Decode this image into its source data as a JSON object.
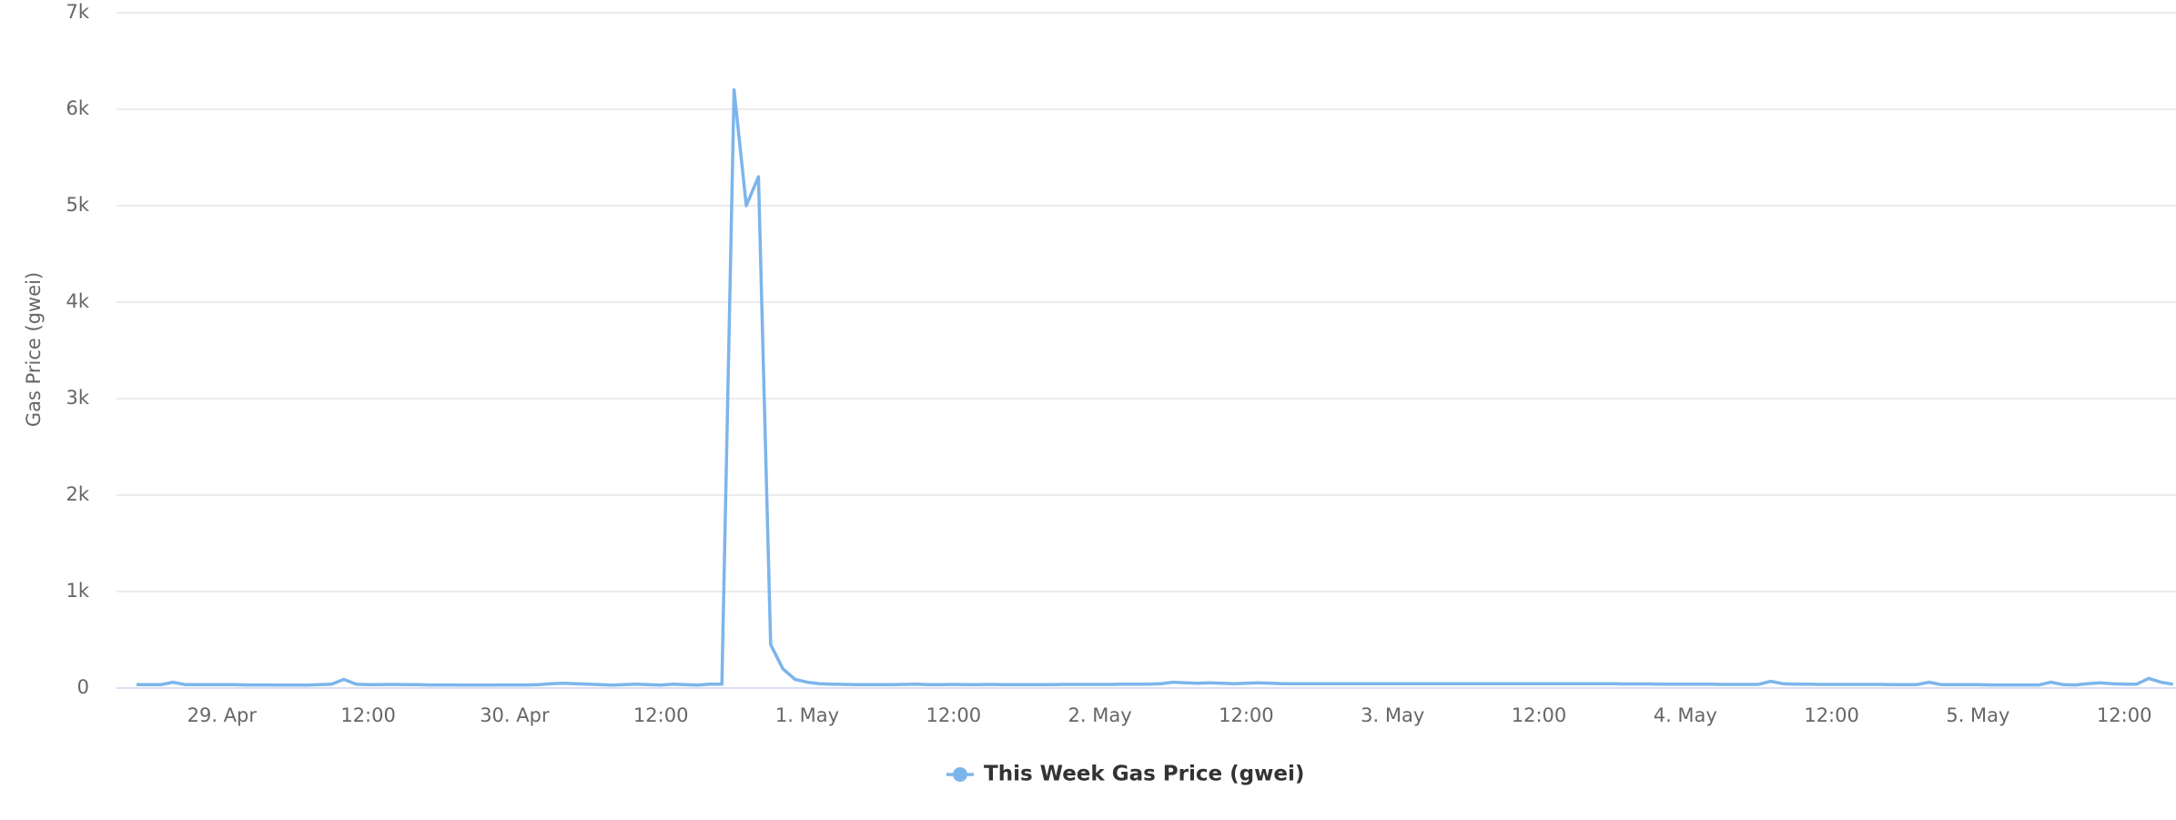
{
  "chart_data": {
    "type": "line",
    "y_label": "Gas Price (gwei)",
    "ylim": [
      0,
      7000
    ],
    "yticks": [
      0,
      {
        "value": 1000,
        "label": "1k"
      },
      {
        "value": 2000,
        "label": "2k"
      },
      {
        "value": 3000,
        "label": "3k"
      },
      {
        "value": 4000,
        "label": "4k"
      },
      {
        "value": 5000,
        "label": "5k"
      },
      {
        "value": 6000,
        "label": "6k"
      },
      {
        "value": 7000,
        "label": "7k"
      }
    ],
    "grid": true,
    "legend": "bottom",
    "categories": [
      null,
      null,
      null,
      null,
      null,
      null,
      null,
      "29. Apr",
      null,
      null,
      null,
      null,
      null,
      null,
      null,
      null,
      null,
      null,
      null,
      "12:00",
      null,
      null,
      null,
      null,
      null,
      null,
      null,
      null,
      null,
      null,
      null,
      "30. Apr",
      null,
      null,
      null,
      null,
      null,
      null,
      null,
      null,
      null,
      null,
      null,
      "12:00",
      null,
      null,
      null,
      null,
      null,
      null,
      null,
      null,
      null,
      null,
      null,
      "1. May",
      null,
      null,
      null,
      null,
      null,
      null,
      null,
      null,
      null,
      null,
      null,
      "12:00",
      null,
      null,
      null,
      null,
      null,
      null,
      null,
      null,
      null,
      null,
      null,
      "2. May",
      null,
      null,
      null,
      null,
      null,
      null,
      null,
      null,
      null,
      null,
      null,
      "12:00",
      null,
      null,
      null,
      null,
      null,
      null,
      null,
      null,
      null,
      null,
      null,
      "3. May",
      null,
      null,
      null,
      null,
      null,
      null,
      null,
      null,
      null,
      null,
      null,
      "12:00",
      null,
      null,
      null,
      null,
      null,
      null,
      null,
      null,
      null,
      null,
      null,
      "4. May",
      null,
      null,
      null,
      null,
      null,
      null,
      null,
      null,
      null,
      null,
      null,
      "12:00",
      null,
      null,
      null,
      null,
      null,
      null,
      null,
      null,
      null,
      null,
      null,
      "5. May",
      null,
      null,
      null,
      null,
      null,
      null,
      null,
      null,
      null,
      null,
      null,
      "12:00",
      null,
      null,
      null,
      null
    ],
    "series": [
      {
        "name": "This Week Gas Price (gwei)",
        "color": "#7cb5ec",
        "values": [
          35,
          35,
          35,
          60,
          35,
          35,
          35,
          35,
          35,
          32,
          32,
          32,
          30,
          30,
          30,
          35,
          40,
          90,
          40,
          35,
          35,
          38,
          35,
          35,
          32,
          32,
          32,
          30,
          30,
          30,
          32,
          32,
          32,
          35,
          45,
          50,
          45,
          40,
          35,
          30,
          35,
          40,
          35,
          30,
          40,
          35,
          30,
          40,
          40,
          6200,
          5000,
          5300,
          450,
          200,
          90,
          60,
          45,
          40,
          38,
          36,
          35,
          35,
          35,
          38,
          40,
          35,
          35,
          38,
          35,
          35,
          38,
          36,
          35,
          35,
          35,
          36,
          38,
          38,
          38,
          38,
          38,
          40,
          40,
          40,
          45,
          60,
          55,
          50,
          55,
          50,
          45,
          50,
          55,
          50,
          45,
          45,
          45,
          45,
          45,
          45,
          45,
          45,
          45,
          45,
          45,
          45,
          45,
          45,
          45,
          45,
          45,
          45,
          45,
          45,
          45,
          45,
          45,
          45,
          45,
          45,
          45,
          45,
          42,
          42,
          42,
          40,
          40,
          40,
          40,
          40,
          38,
          38,
          38,
          38,
          70,
          45,
          40,
          40,
          38,
          38,
          38,
          38,
          38,
          38,
          36,
          36,
          36,
          60,
          35,
          35,
          35,
          35,
          32,
          32,
          32,
          32,
          32,
          60,
          35,
          32,
          45,
          55,
          45,
          40,
          40,
          100,
          60,
          40
        ]
      }
    ]
  }
}
